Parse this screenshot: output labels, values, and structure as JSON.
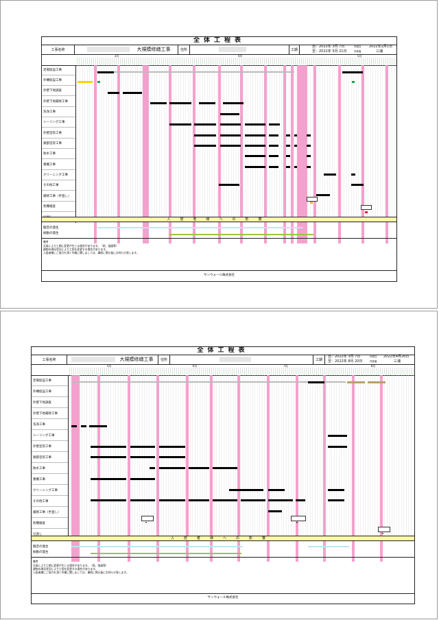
{
  "colors": {
    "holiday": "#f390c4",
    "bar": "#000000",
    "band": "#fff8a8",
    "noise": "#bde6f0",
    "vibration": "#9bc53d"
  },
  "pages": [
    {
      "title": "全体工程表",
      "labels": {
        "project": "工事名称",
        "address": "住所",
        "period": "工期",
        "created": "作成日",
        "author": "作成者"
      },
      "project_name": "大規模修繕工事",
      "period_from": "自：2022年 3月 7日",
      "period_to": "至：2022年 5月 21日",
      "created_date": "2022年2月1日",
      "author_name": "三浦",
      "months": [
        "3月",
        "4月",
        "5月"
      ],
      "tasks": [
        "足場仮設工事",
        "外構仮設工事",
        "外壁下地調査",
        "外壁下地補修工事",
        "洗浄工事",
        "シーリング工事",
        "外壁塗装工事",
        "鉄部塗装工事",
        "防水工事",
        "重機工事",
        "クリーニング工事",
        "その他工事",
        "補修工事（手直し）",
        "各種検査",
        "引渡し"
      ],
      "band": "入居者様への影響",
      "effects": [
        "騒音の発生",
        "振動の発生"
      ],
      "remarks_title": "備考",
      "remarks": [
        "天候により工期に変更が生じる場合があります。（雨、強風等）",
        "建物の現況状況により工程を変更する場合があります。",
        "入居者様にご協力を頂く作業に関しましては、事前に掲示板にお知らせ致します。"
      ],
      "company": "サンウォール株式会社"
    },
    {
      "title": "全体工程表",
      "labels": {
        "project": "工事名称",
        "address": "住所",
        "period": "工期",
        "created": "作成日",
        "author": "作成者"
      },
      "project_name": "大規模修繕工事",
      "period_from": "自：2022年 3月 7日",
      "period_to": "至：2022年 8月 20日",
      "created_date": "2022年4月26日",
      "author_name": "三浦",
      "months": [
        "5月",
        "6月",
        "7月",
        "8月"
      ],
      "tasks": [
        "足場仮設工事",
        "外構仮設工事",
        "外壁下地調査",
        "外壁下地補修工事",
        "洗浄工事",
        "シーリング工事",
        "外壁塗装工事",
        "鉄部塗装工事",
        "防水工事",
        "重機工事",
        "クリーニング工事",
        "その他工事",
        "補修工事（手直し）",
        "各種検査",
        "引渡し"
      ],
      "band": "入居者様への影響",
      "effects": [
        "騒音の発生",
        "振動の発生"
      ],
      "remarks_title": "備考",
      "remarks": [
        "天候により工期に変更が生じる場合があります。（雨、強風等）",
        "建物の現況状況により工程を変更する場合があります。",
        "入居者様にご協力を頂く作業に関しましては、事前に掲示板にお知らせ致します。"
      ],
      "company": "サンウォール株式会社"
    }
  ]
}
